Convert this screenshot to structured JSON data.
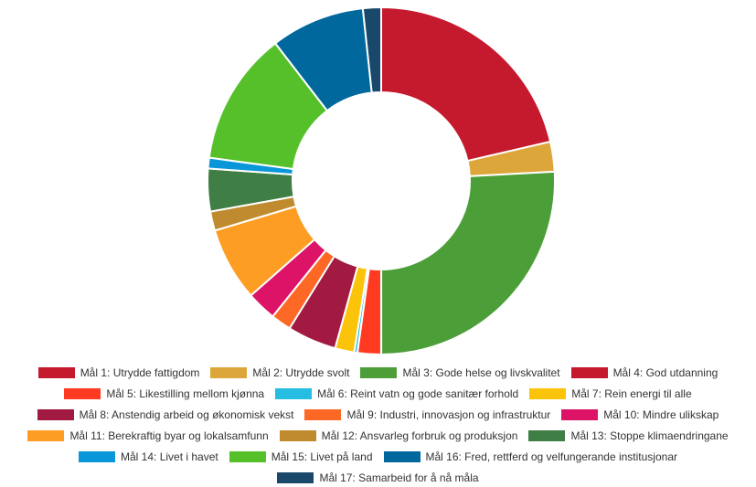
{
  "chart_data": {
    "type": "pie",
    "donut": true,
    "legend_position": "bottom",
    "series": [
      {
        "name": "Mål 1: Utrydde fattigdom",
        "value": 21.5,
        "color": "#C5192D"
      },
      {
        "name": "Mål 2: Utrydde svolt",
        "value": 2.8,
        "color": "#DDA63A"
      },
      {
        "name": "Mål 3: Gode helse og livskvalitet",
        "value": 26.0,
        "color": "#4C9F38"
      },
      {
        "name": "Mål 4: God utdanning",
        "value": 0.01,
        "color": "#C5192D"
      },
      {
        "name": "Mål 5: Likestilling mellom kjønna",
        "value": 2.2,
        "color": "#FF3A21"
      },
      {
        "name": "Mål 6: Reint vatn og gode sanitær forhold",
        "value": 0.3,
        "color": "#26BDE2"
      },
      {
        "name": "Mål 7: Rein energi til alle",
        "value": 1.8,
        "color": "#FCC30B"
      },
      {
        "name": "Mål 8: Anstendig arbeid og økonomisk vekst",
        "value": 4.6,
        "color": "#A21942"
      },
      {
        "name": "Mål 9: Industri, innovasjon og infrastruktur",
        "value": 1.9,
        "color": "#FD6925"
      },
      {
        "name": "Mål 10: Mindre ulikskap",
        "value": 2.8,
        "color": "#DD1367"
      },
      {
        "name": "Mål 11: Berekraftig byar og lokalsamfunn",
        "value": 6.9,
        "color": "#FD9D24"
      },
      {
        "name": "Mål 12: Ansvarleg forbruk og produksjon",
        "value": 1.8,
        "color": "#BF8B2E"
      },
      {
        "name": "Mål 13: Stoppe klimaendringane",
        "value": 4.0,
        "color": "#3F7E44"
      },
      {
        "name": "Mål 14: Livet i havet",
        "value": 1.0,
        "color": "#0A97D9"
      },
      {
        "name": "Mål 15: Livet på land",
        "value": 12.5,
        "color": "#56C02B"
      },
      {
        "name": "Mål 16: Fred, rettferd og velfungerande institusjonar",
        "value": 8.8,
        "color": "#00689D"
      },
      {
        "name": "Mål 17: Samarbeid for å nå måla",
        "value": 1.7,
        "color": "#19486A"
      }
    ]
  }
}
